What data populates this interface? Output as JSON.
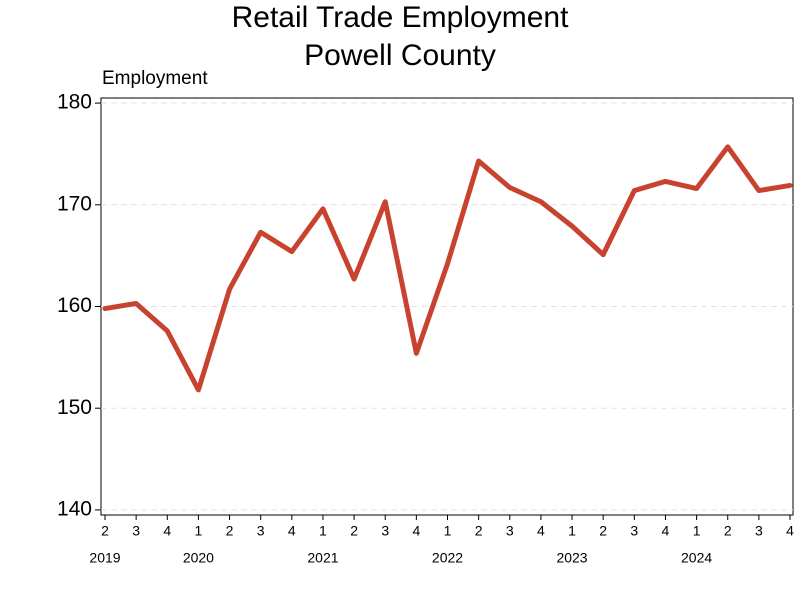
{
  "chart_data": {
    "type": "line",
    "title": "Retail Trade Employment",
    "subtitle": "Powell County",
    "y_label": "Employment",
    "categories": [
      "2",
      "3",
      "4",
      "1",
      "2",
      "3",
      "4",
      "1",
      "2",
      "3",
      "4",
      "1",
      "2",
      "3",
      "4",
      "1",
      "2",
      "3",
      "4",
      "1",
      "2",
      "3",
      "4"
    ],
    "years": [
      "2019",
      null,
      null,
      "2020",
      null,
      null,
      null,
      "2021",
      null,
      null,
      null,
      "2022",
      null,
      null,
      null,
      "2023",
      null,
      null,
      null,
      "2024",
      null,
      null,
      null
    ],
    "series": [
      {
        "name": "Employment",
        "color": "#c8432f",
        "values": [
          159.8,
          160.3,
          157.6,
          151.8,
          161.7,
          167.3,
          165.4,
          169.6,
          162.7,
          170.3,
          155.4,
          164.2,
          174.3,
          171.7,
          170.3,
          167.9,
          165.1,
          171.4,
          172.3,
          171.6,
          175.7,
          171.4,
          171.9
        ]
      }
    ],
    "ylim": [
      139.5,
      180.5
    ],
    "yticks": [
      140,
      150,
      160,
      170,
      180
    ],
    "grid": true
  }
}
